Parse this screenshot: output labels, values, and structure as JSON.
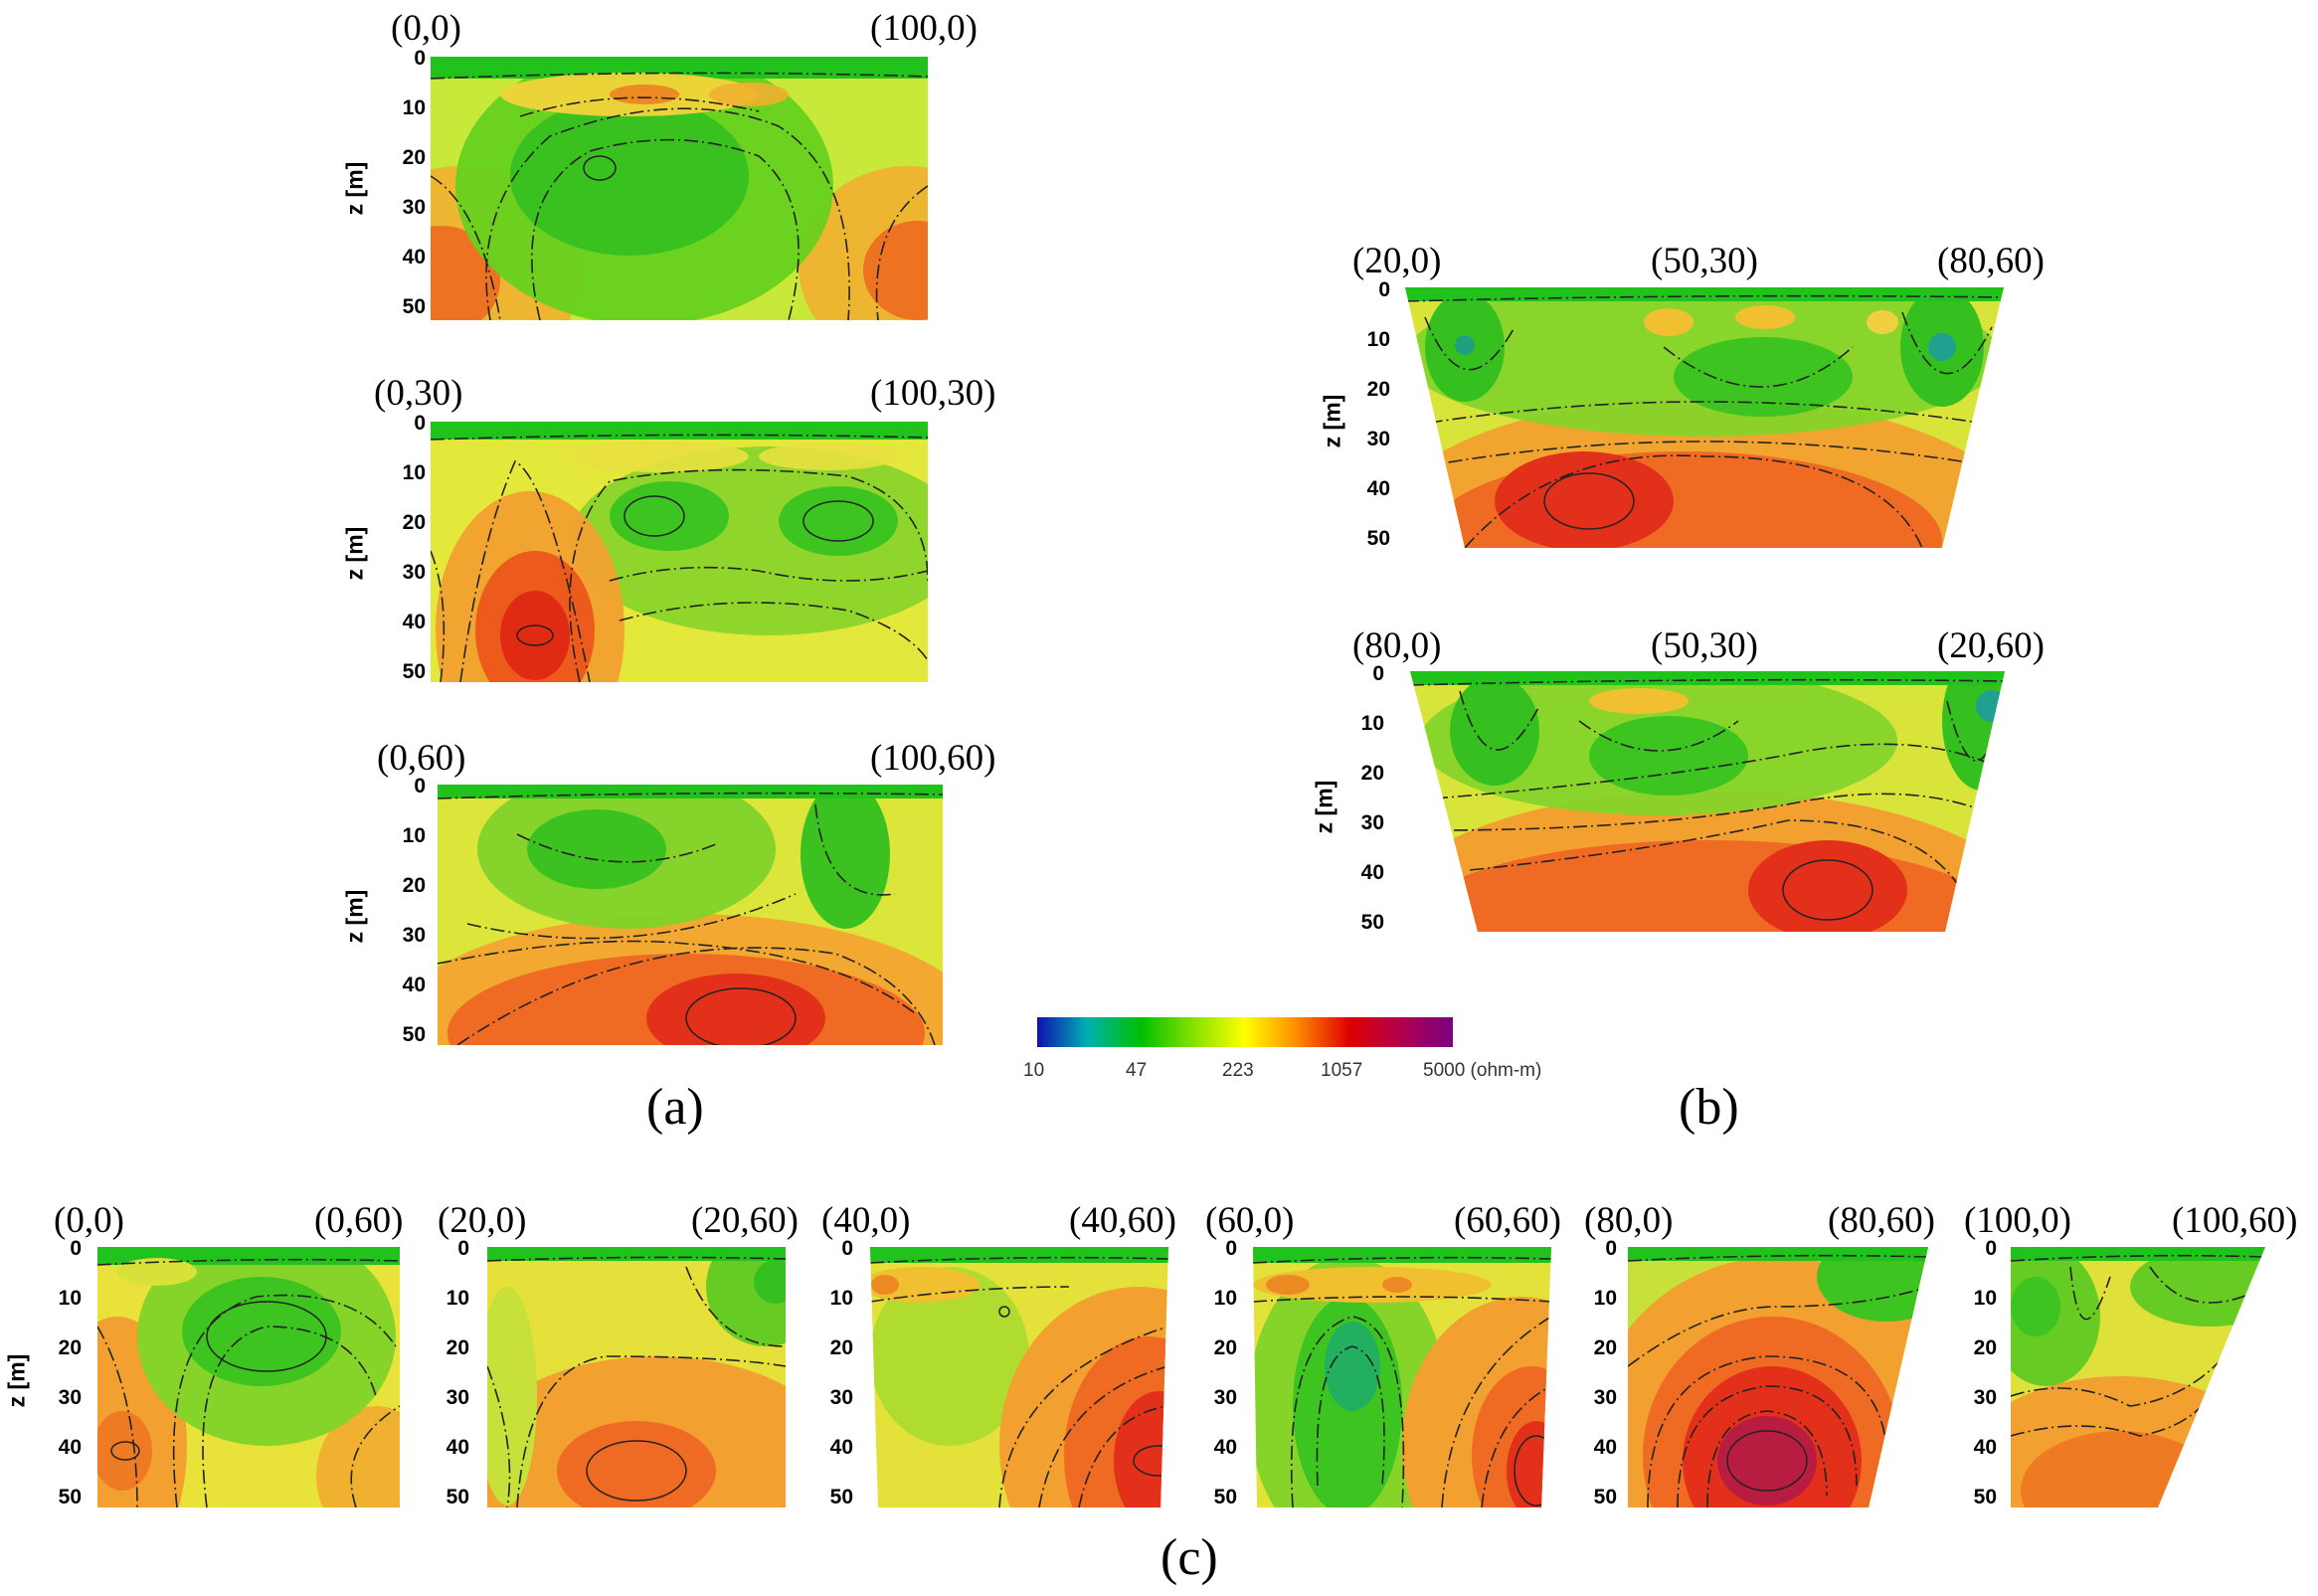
{
  "figure": {
    "z_axis": {
      "label": "z [m]",
      "ticks": [
        "0",
        "10",
        "20",
        "30",
        "40",
        "50"
      ]
    },
    "captions": {
      "a": "(a)",
      "b": "(b)",
      "c": "(c)"
    },
    "colorbar": {
      "ticks": [
        "10",
        "47",
        "223",
        "1057",
        "5000 (ohm-m)"
      ],
      "colors": [
        "#1010b0",
        "#00b0b0",
        "#00c000",
        "#7fe000",
        "#ffff00",
        "#ff9000",
        "#e00000",
        "#b00050",
        "#7a0080"
      ]
    },
    "panels_a": [
      {
        "left": "(0,0)",
        "right": "(100,0)"
      },
      {
        "left": "(0,30)",
        "right": "(100,30)"
      },
      {
        "left": "(0,60)",
        "right": "(100,60)"
      }
    ],
    "panels_b": [
      {
        "left": "(20,0)",
        "mid": "(50,30)",
        "right": "(80,60)"
      },
      {
        "left": "(80,0)",
        "mid": "(50,30)",
        "right": "(20,60)"
      }
    ],
    "panels_c": [
      {
        "left": "(0,0)",
        "right": "(0,60)"
      },
      {
        "left": "(20,0)",
        "right": "(20,60)"
      },
      {
        "left": "(40,0)",
        "right": "(40,60)"
      },
      {
        "left": "(60,0)",
        "right": "(60,60)"
      },
      {
        "left": "(80,0)",
        "right": "(80,60)"
      },
      {
        "left": "(100,0)",
        "right": "(100,60)"
      }
    ]
  }
}
